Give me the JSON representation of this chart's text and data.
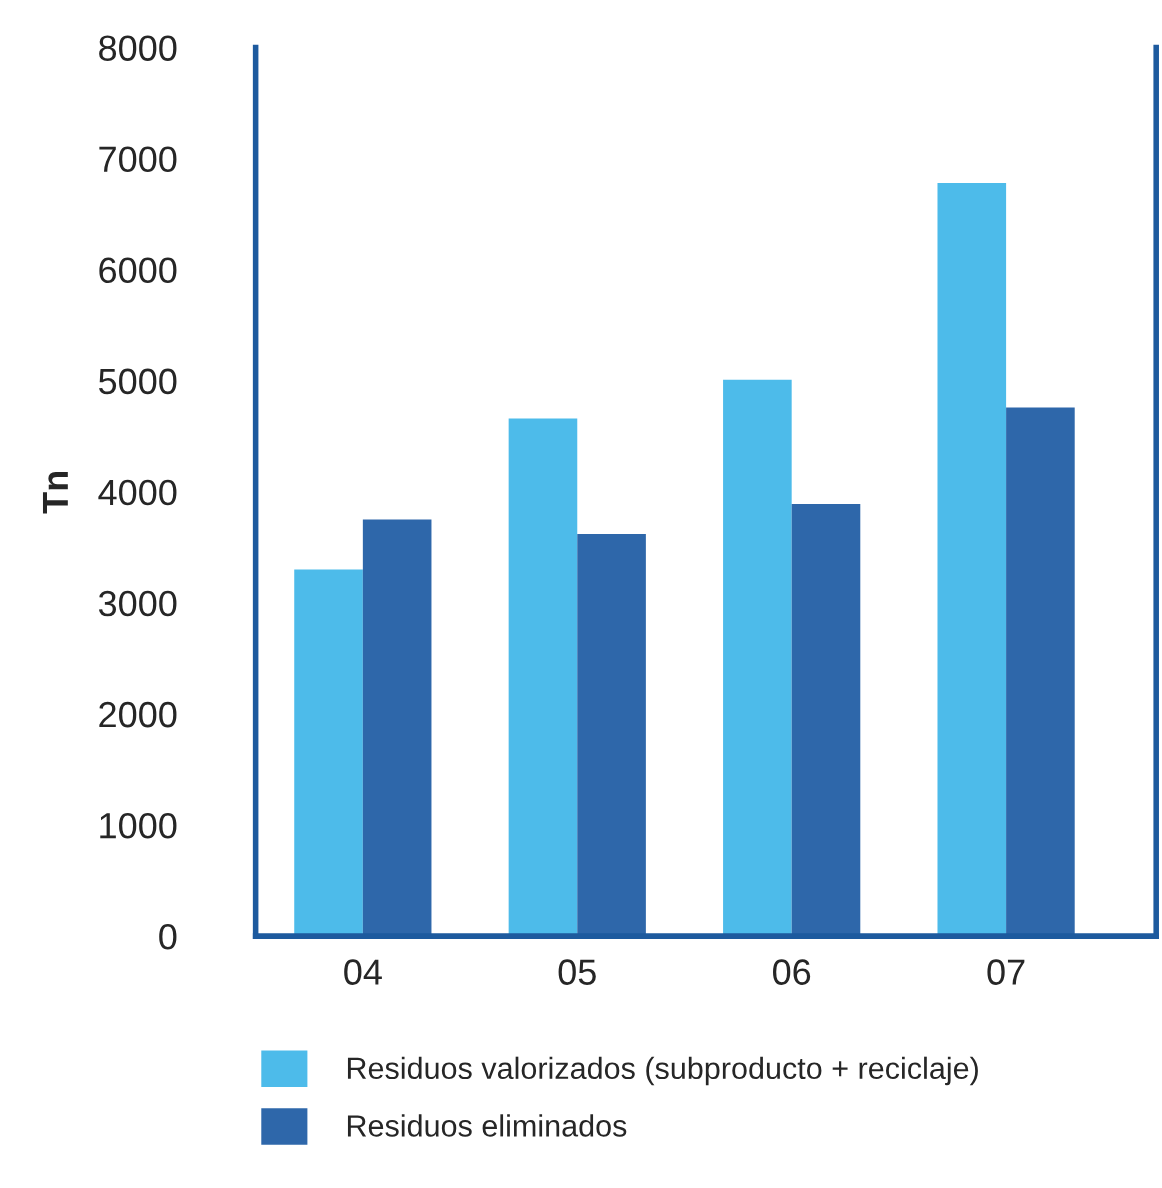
{
  "chart_data": {
    "type": "bar",
    "ylabel": "Tn",
    "categories": [
      "04",
      "05",
      "06",
      "07"
    ],
    "series": [
      {
        "name": "Residuos valorizados (subproducto + reciclaje)",
        "color": "#4dbbea",
        "values": [
          3300,
          4660,
          5010,
          6780
        ]
      },
      {
        "name": "Residuos eliminados",
        "color": "#2e67aa",
        "values": [
          3750,
          3620,
          3890,
          4760
        ]
      }
    ],
    "ylim": [
      0,
      8000
    ],
    "yticks": [
      0,
      1000,
      2000,
      3000,
      4000,
      5000,
      6000,
      7000,
      8000
    ],
    "grid": false,
    "legend": "bottom"
  }
}
